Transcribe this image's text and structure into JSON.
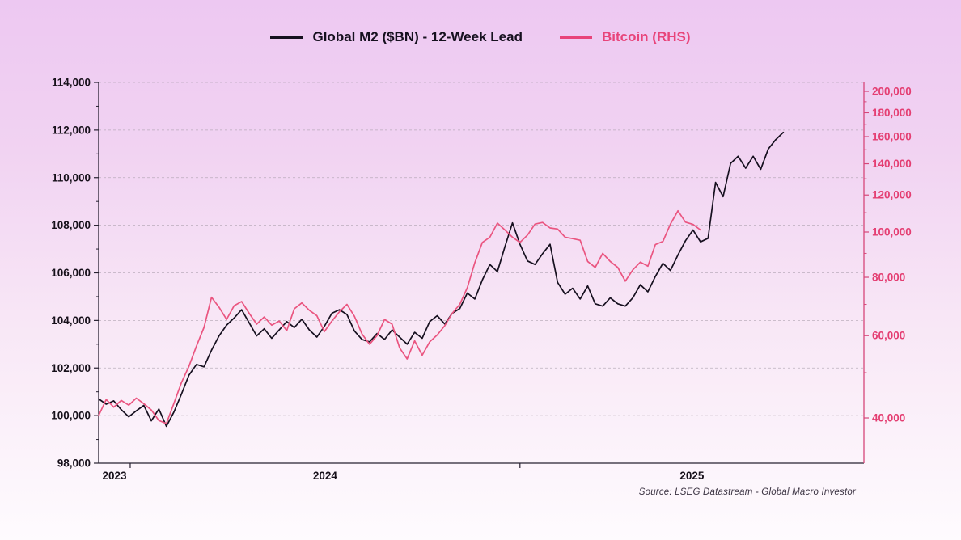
{
  "legend": {
    "items": [
      {
        "label": "Global M2 ($BN) - 12-Week Lead",
        "color": "#16101f"
      },
      {
        "label": "Bitcoin (RHS)",
        "color": "#e8447a"
      }
    ]
  },
  "source_note": "Source: LSEG Datastream - Global Macro Investor",
  "colors": {
    "m2_line": "#16101f",
    "btc_line": "#ea5580",
    "left_axis_text": "#16101a",
    "right_axis_text": "#e43e72",
    "right_spine": "#d6477a",
    "black_spine": "#262030",
    "gridline": "#a89daa",
    "year_text": "#16101a"
  },
  "chart_data": {
    "type": "line",
    "title": "",
    "x_axis": {
      "unit": "weeks",
      "year_labels": [
        "2023",
        "2024",
        "2025"
      ],
      "year_boundaries_weeks": [
        0,
        4.19,
        56.0,
        101.72
      ]
    },
    "left_axis": {
      "label": "Global M2 ($BN)",
      "scale": "linear",
      "min": 98000,
      "max": 114000,
      "tick_step": 2000,
      "ticks": [
        98000,
        100000,
        102000,
        104000,
        106000,
        108000,
        110000,
        112000,
        114000
      ]
    },
    "right_axis": {
      "label": "Bitcoin (RHS)",
      "scale": "log",
      "ticks": [
        40000,
        60000,
        80000,
        100000,
        120000,
        140000,
        160000,
        180000,
        200000
      ],
      "minor_ticks": [
        50000,
        70000,
        90000,
        110000,
        130000,
        150000,
        170000,
        190000
      ]
    },
    "series": [
      {
        "name": "Global M2 ($BN) - 12-Week Lead",
        "axis": "left",
        "color": "#16101f",
        "start_week": 0,
        "step_weeks": 1,
        "values": [
          100700,
          100480,
          100620,
          100250,
          99950,
          100200,
          100430,
          99780,
          100280,
          99550,
          100150,
          100900,
          101700,
          102150,
          102050,
          102750,
          103350,
          103800,
          104100,
          104450,
          103900,
          103350,
          103650,
          103250,
          103600,
          103950,
          103700,
          104050,
          103600,
          103300,
          103750,
          104300,
          104450,
          104250,
          103550,
          103200,
          103100,
          103450,
          103200,
          103600,
          103300,
          103000,
          103500,
          103250,
          103950,
          104200,
          103850,
          104300,
          104500,
          105150,
          104900,
          105700,
          106350,
          106050,
          107100,
          108100,
          107200,
          106500,
          106350,
          106800,
          107200,
          105600,
          105100,
          105350,
          104900,
          105450,
          104700,
          104600,
          104950,
          104700,
          104600,
          104950,
          105500,
          105200,
          105850,
          106400,
          106100,
          106750,
          107350,
          107800,
          107300,
          107450,
          109800,
          109200,
          110600,
          110900,
          110400,
          110900,
          110350,
          111200,
          111600,
          111900
        ]
      },
      {
        "name": "Bitcoin (RHS)",
        "axis": "right",
        "color": "#ea5580",
        "start_week": 0,
        "step_weeks": 1,
        "values": [
          40500,
          43800,
          42200,
          43600,
          42600,
          44100,
          42900,
          41600,
          39500,
          38900,
          43000,
          47600,
          51600,
          57000,
          62500,
          72500,
          69000,
          65000,
          69500,
          71000,
          67000,
          63500,
          65800,
          63200,
          64500,
          61500,
          68500,
          70500,
          68000,
          66200,
          61200,
          64500,
          67500,
          70000,
          66000,
          60500,
          57500,
          60000,
          65000,
          63500,
          56500,
          53500,
          58500,
          54500,
          58200,
          60200,
          63000,
          67000,
          70000,
          76000,
          86000,
          95000,
          97500,
          104500,
          101000,
          97500,
          95000,
          98500,
          104000,
          104800,
          102000,
          101500,
          97500,
          96800,
          96000,
          86500,
          84000,
          90000,
          86500,
          84000,
          78500,
          83000,
          86200,
          84500,
          94000,
          95500,
          104000,
          111000,
          105000,
          103800,
          101000
        ]
      }
    ]
  }
}
